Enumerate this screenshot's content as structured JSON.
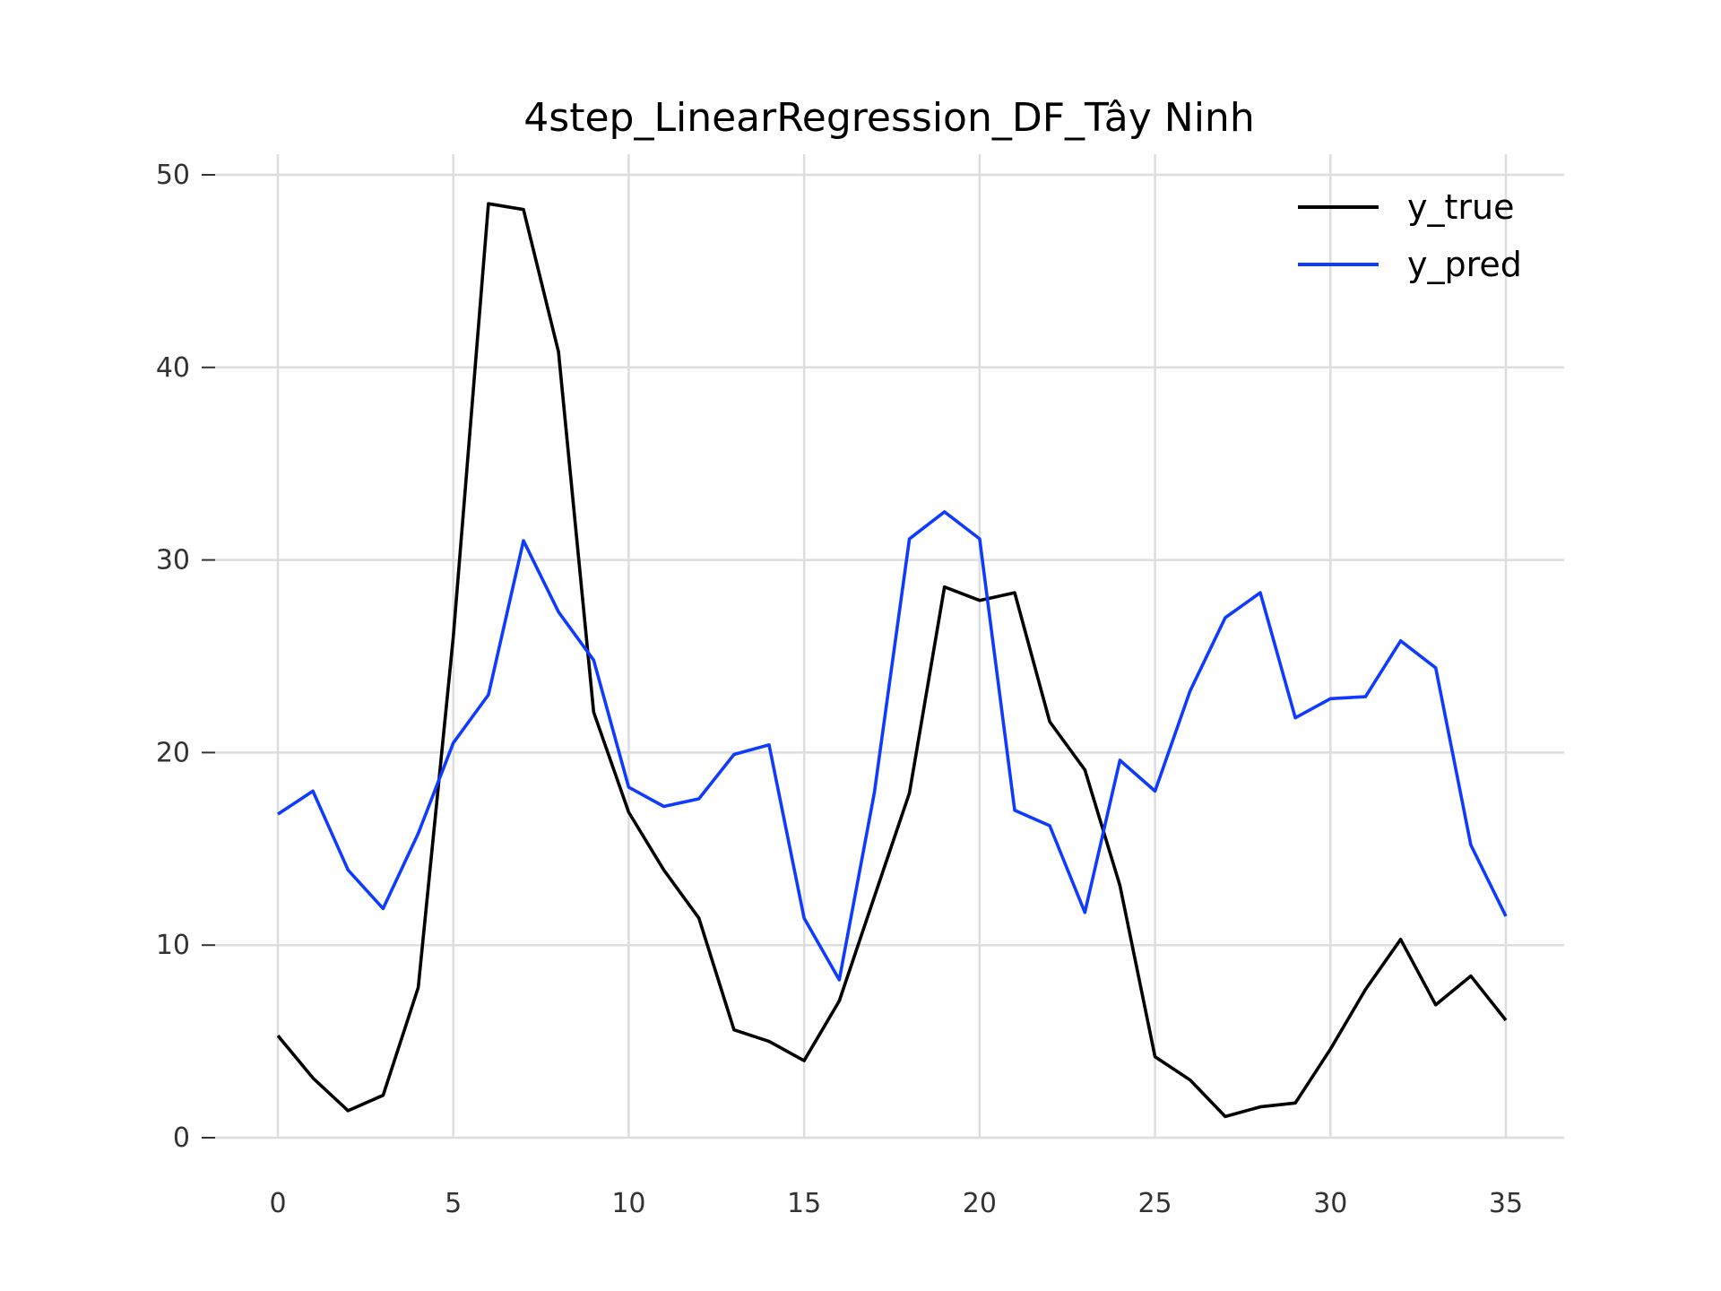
{
  "chart_data": {
    "type": "line",
    "title": "4step_LinearRegression_DF_Tây Ninh",
    "xlabel": "",
    "ylabel": "",
    "xlim": [
      0,
      35
    ],
    "ylim": [
      0,
      50
    ],
    "x_ticks": [
      0,
      5,
      10,
      15,
      20,
      25,
      30,
      35
    ],
    "y_ticks": [
      0,
      10,
      20,
      30,
      40,
      50
    ],
    "grid": true,
    "legend_position": "top-right",
    "x": [
      0,
      1,
      2,
      3,
      4,
      5,
      6,
      7,
      8,
      9,
      10,
      11,
      12,
      13,
      14,
      15,
      16,
      17,
      18,
      19,
      20,
      21,
      22,
      23,
      24,
      25,
      26,
      27,
      28,
      29,
      30,
      31,
      32,
      33,
      34,
      35
    ],
    "series": [
      {
        "name": "y_true",
        "color": "#000000",
        "values": [
          5.3,
          3.1,
          1.4,
          2.2,
          7.8,
          26.0,
          48.5,
          48.2,
          40.8,
          22.1,
          16.9,
          13.9,
          11.4,
          5.6,
          5.0,
          4.0,
          7.1,
          12.5,
          17.9,
          28.6,
          27.9,
          28.3,
          21.6,
          19.1,
          13.1,
          4.2,
          3.0,
          1.1,
          1.6,
          1.8,
          4.6,
          7.7,
          10.3,
          6.9,
          8.4,
          6.1
        ]
      },
      {
        "name": "y_pred",
        "color": "#0f3bff",
        "values": [
          16.8,
          18.0,
          13.9,
          11.9,
          15.8,
          20.5,
          23.0,
          31.0,
          27.3,
          24.8,
          18.2,
          17.2,
          17.6,
          19.9,
          20.4,
          11.4,
          8.2,
          17.9,
          31.1,
          32.5,
          31.1,
          17.0,
          16.2,
          11.7,
          19.6,
          18.0,
          23.2,
          27.0,
          28.3,
          21.8,
          22.8,
          22.9,
          25.8,
          24.4,
          15.2,
          11.5
        ]
      }
    ]
  }
}
